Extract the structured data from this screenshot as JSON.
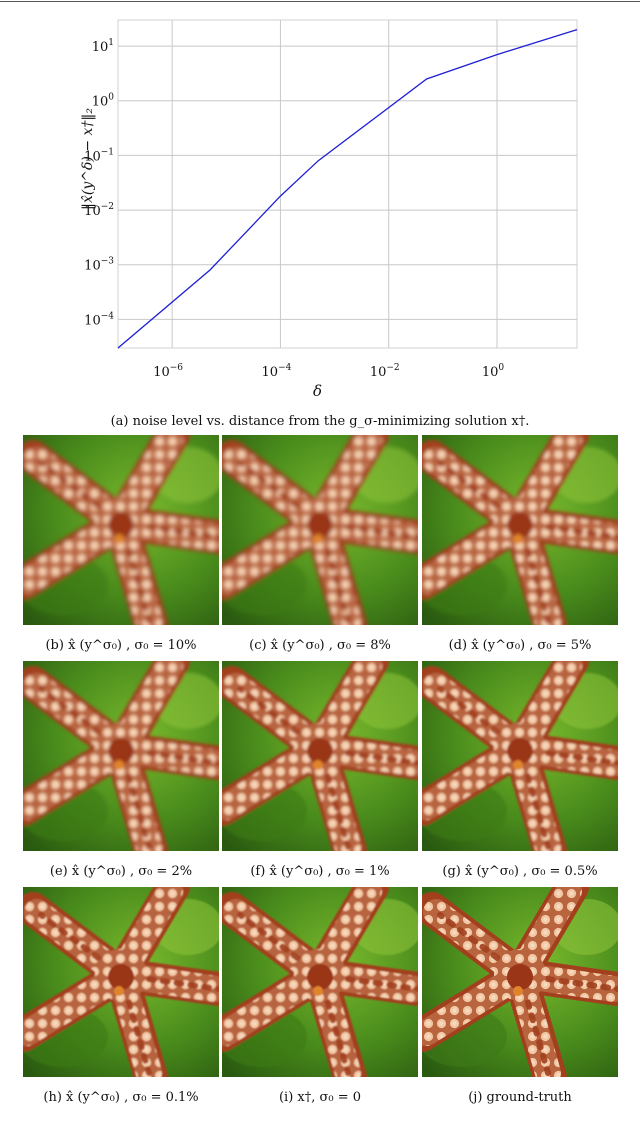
{
  "chart_data": {
    "type": "line",
    "xscale": "log",
    "yscale": "log",
    "xlim": [
      1e-07,
      30
    ],
    "ylim": [
      3e-05,
      30
    ],
    "xticks": [
      1e-06,
      0.0001,
      0.01,
      1
    ],
    "xtick_labels": [
      "10^-6",
      "10^-4",
      "10^-2",
      "10^0"
    ],
    "yticks": [
      0.0001,
      0.001,
      0.01,
      0.1,
      1,
      10
    ],
    "ytick_labels": [
      "10^-4",
      "10^-3",
      "10^-2",
      "10^-1",
      "10^0",
      "10^1"
    ],
    "grid": true,
    "xlabel": "δ",
    "ylabel": "‖x̂(y^δ) − x†‖₂",
    "series": [
      {
        "color": "#1f1fd6",
        "x": [
          1e-07,
          5e-06,
          0.0001,
          0.0005,
          0.05,
          1,
          30
        ],
        "y": [
          3e-05,
          0.0008,
          0.018,
          0.08,
          2.5,
          7,
          20
        ]
      }
    ]
  },
  "figure": {
    "caption_a": "(a) noise level vs. distance from the g_σ-minimizing solution x†.",
    "panels": [
      {
        "caption": "(b) x̂ (y^σ₀) , σ₀ = 10%",
        "blur": 2.2
      },
      {
        "caption": "(c) x̂ (y^σ₀) , σ₀ = 8%",
        "blur": 2.0
      },
      {
        "caption": "(d) x̂ (y^σ₀) , σ₀ = 5%",
        "blur": 1.8
      },
      {
        "caption": "(e) x̂ (y^σ₀) , σ₀ = 2%",
        "blur": 1.5
      },
      {
        "caption": "(f) x̂ (y^σ₀) , σ₀ = 1%",
        "blur": 1.3
      },
      {
        "caption": "(g) x̂ (y^σ₀) , σ₀ = 0.5%",
        "blur": 1.1
      },
      {
        "caption": "(h) x̂ (y^σ₀) , σ₀ = 0.1%",
        "blur": 0.9
      },
      {
        "caption": "(i) x†, σ₀ = 0",
        "blur": 0.8
      },
      {
        "caption": "(j) ground-truth",
        "blur": 0
      }
    ]
  }
}
